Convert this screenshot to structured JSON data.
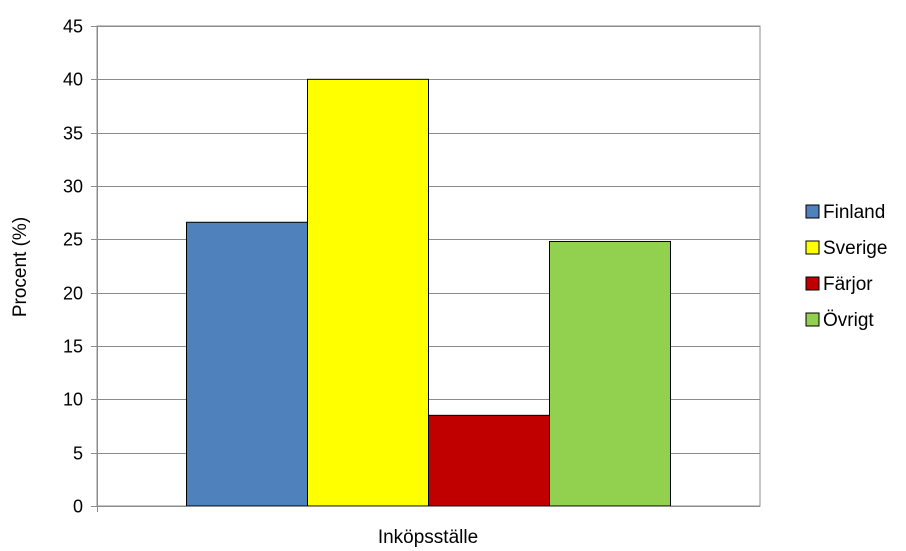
{
  "chart_data": {
    "type": "bar",
    "title": "",
    "xlabel": "Inköpsställe",
    "ylabel": "Procent (%)",
    "categories": [
      "Inköpsställe"
    ],
    "series": [
      {
        "name": "Finland",
        "values": [
          26.6
        ],
        "color": "#4f81bd"
      },
      {
        "name": "Sverige",
        "values": [
          40.0
        ],
        "color": "#ffff00"
      },
      {
        "name": "Färjor",
        "values": [
          8.5
        ],
        "color": "#c00000"
      },
      {
        "name": "Övrigt",
        "values": [
          24.8
        ],
        "color": "#92d050"
      }
    ],
    "ylim": [
      0,
      45
    ],
    "yticks": [
      0,
      5,
      10,
      15,
      20,
      25,
      30,
      35,
      40,
      45
    ],
    "grid": true,
    "legend_position": "right"
  }
}
